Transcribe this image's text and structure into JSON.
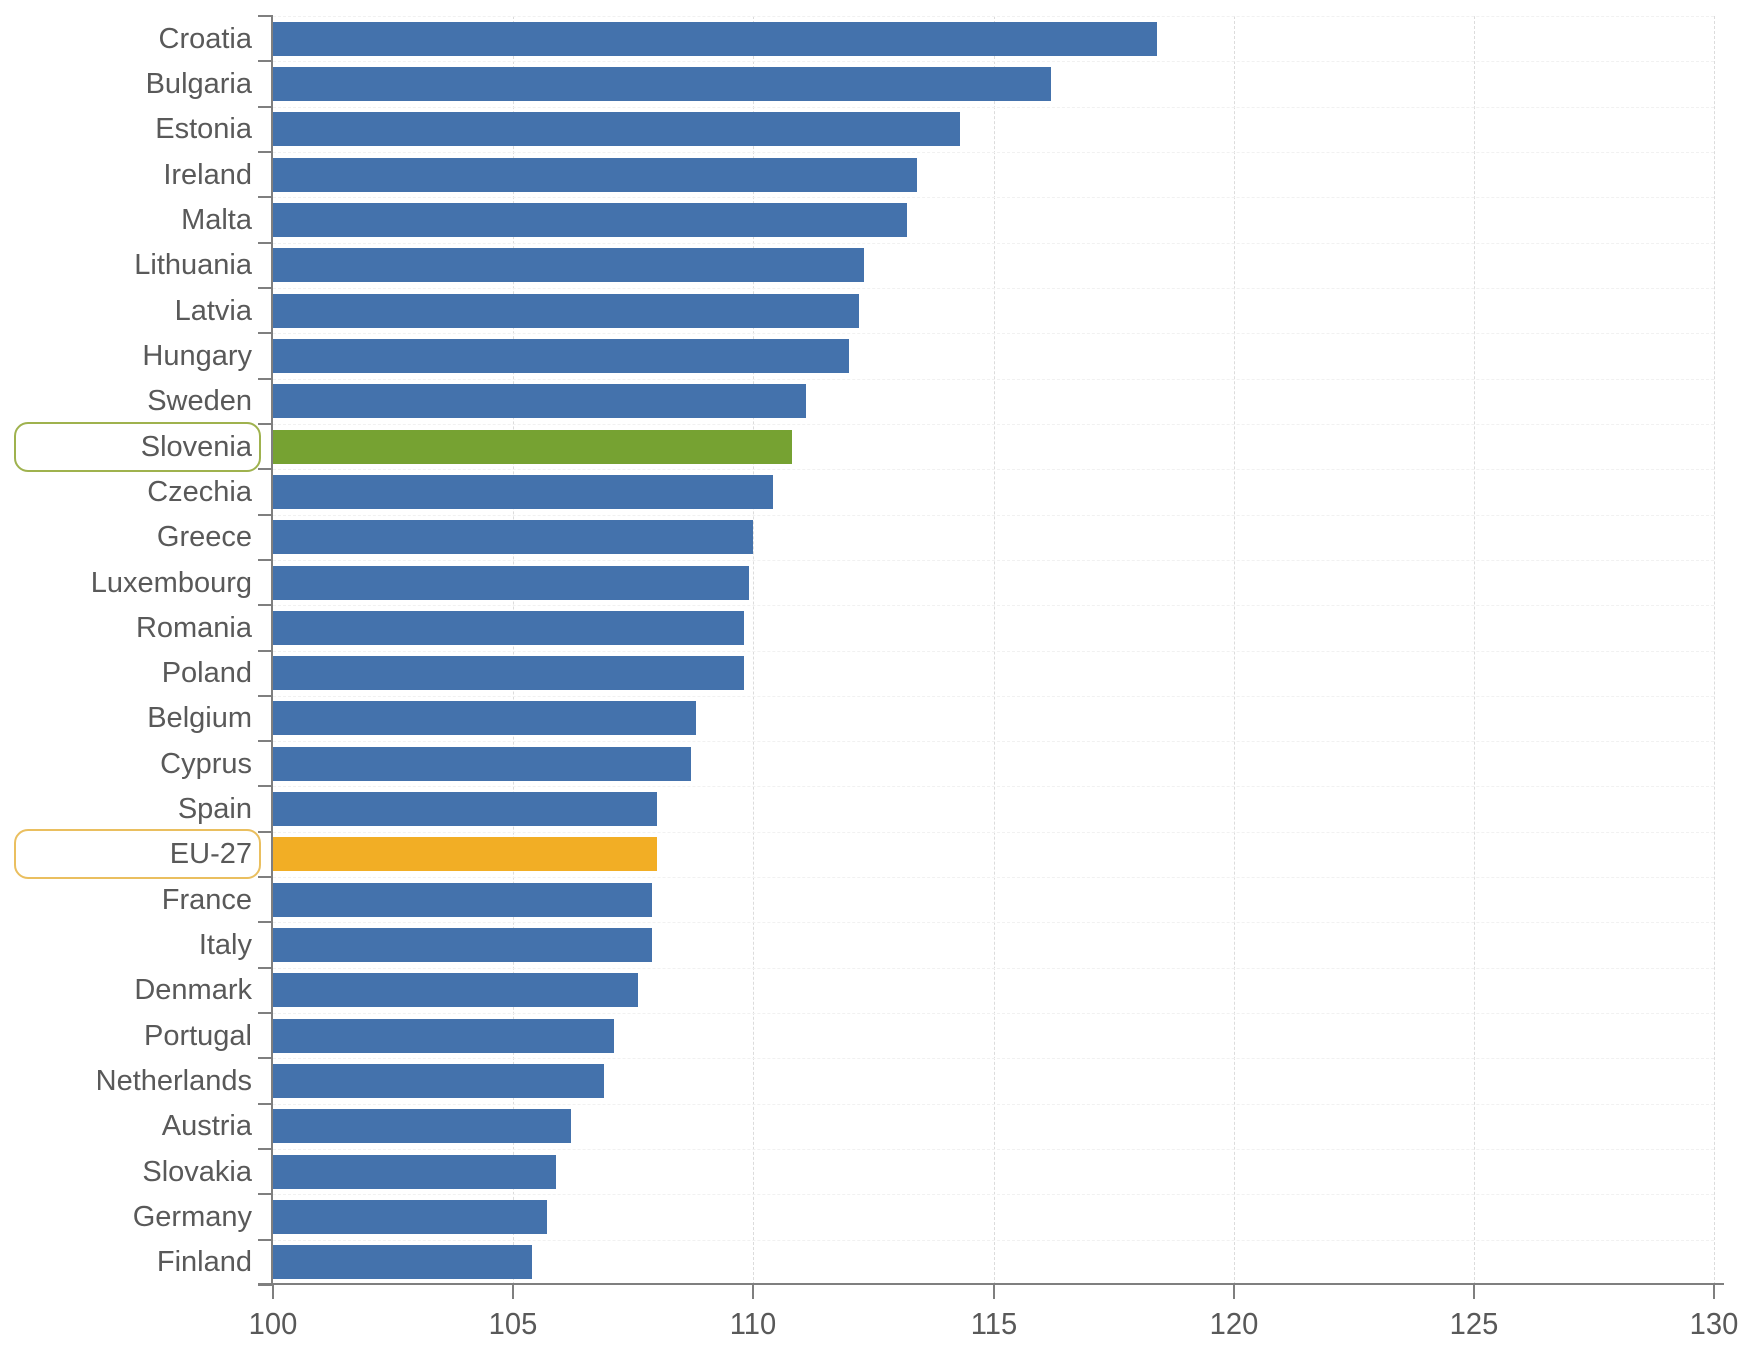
{
  "chart_data": {
    "type": "bar",
    "orientation": "horizontal",
    "title": "",
    "xlabel": "",
    "ylabel": "",
    "xlim": [
      100,
      130
    ],
    "xticks": [
      100,
      105,
      110,
      115,
      120,
      125,
      130
    ],
    "x_tick_labels": [
      "100",
      "105",
      "110",
      "115",
      "120",
      "125",
      "130"
    ],
    "grid": "dashed vertical gridlines every 5 units, faint dashed row separators",
    "legend": "none",
    "categories": [
      "Croatia",
      "Bulgaria",
      "Estonia",
      "Ireland",
      "Malta",
      "Lithuania",
      "Latvia",
      "Hungary",
      "Sweden",
      "Slovenia",
      "Czechia",
      "Greece",
      "Luxembourg",
      "Romania",
      "Poland",
      "Belgium",
      "Cyprus",
      "Spain",
      "EU-27",
      "France",
      "Italy",
      "Denmark",
      "Portugal",
      "Netherlands",
      "Austria",
      "Slovakia",
      "Germany",
      "Finland"
    ],
    "values": [
      118.4,
      116.2,
      114.3,
      113.4,
      113.2,
      112.3,
      112.2,
      112.0,
      111.1,
      110.8,
      110.4,
      110.0,
      109.9,
      109.8,
      109.8,
      108.8,
      108.7,
      108.0,
      108.0,
      107.9,
      107.9,
      107.6,
      107.1,
      106.9,
      106.2,
      105.9,
      105.7,
      105.4
    ],
    "default_bar_color": "#4472AC",
    "highlighted_bars": [
      {
        "category": "Slovenia",
        "bar_color": "#76A232",
        "label_box_border": "#9FB24E"
      },
      {
        "category": "EU-27",
        "bar_color": "#F2AE25",
        "label_box_border": "#EABF5F"
      }
    ]
  },
  "colors": {
    "background": "#FFFFFF",
    "axis": "#7F7F7F",
    "text": "#595959",
    "gridline_vertical": "#DCDCDC",
    "gridline_horizontal": "#F1F1F1"
  }
}
